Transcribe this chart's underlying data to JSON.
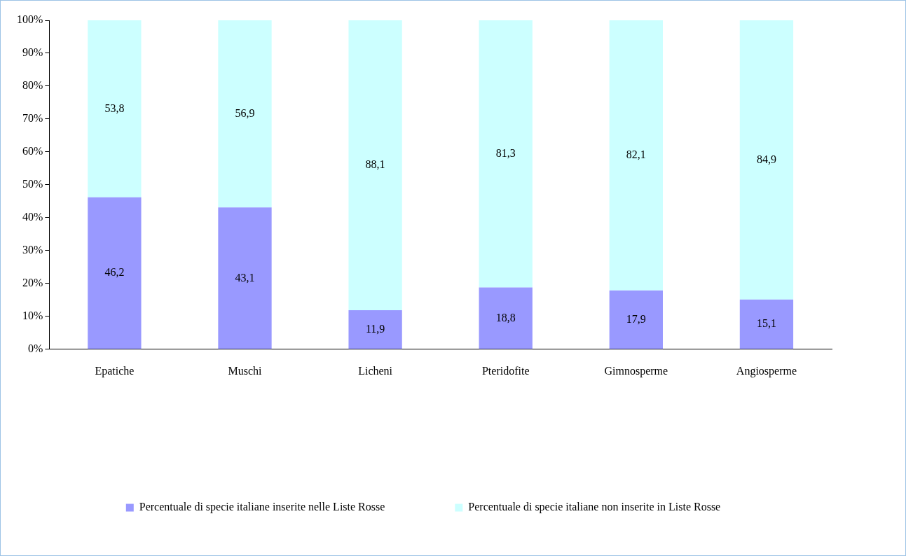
{
  "chart_data": {
    "type": "bar",
    "stacked": true,
    "categories": [
      "Epatiche",
      "Muschi",
      "Licheni",
      "Pteridofite",
      "Gimnosperme",
      "Angiosperme"
    ],
    "series": [
      {
        "name": "Percentuale di specie italiane inserite nelle Liste Rosse",
        "color": "#9999ff",
        "values": [
          46.2,
          43.1,
          11.9,
          18.8,
          17.9,
          15.1
        ],
        "value_labels": [
          "46,2",
          "43,1",
          "11,9",
          "18,8",
          "17,9",
          "15,1"
        ]
      },
      {
        "name": "Percentuale di specie italiane non inserite in Liste Rosse",
        "color": "#ccffff",
        "values": [
          53.8,
          56.9,
          88.1,
          81.3,
          82.1,
          84.9
        ],
        "value_labels": [
          "53,8",
          "56,9",
          "88,1",
          "81,3",
          "82,1",
          "84,9"
        ]
      }
    ],
    "ylim": [
      0,
      100
    ],
    "yticks": [
      {
        "value": 0,
        "label": "0%"
      },
      {
        "value": 10,
        "label": "10%"
      },
      {
        "value": 20,
        "label": "20%"
      },
      {
        "value": 30,
        "label": "30%"
      },
      {
        "value": 40,
        "label": "40%"
      },
      {
        "value": 50,
        "label": "50%"
      },
      {
        "value": 60,
        "label": "60%"
      },
      {
        "value": 70,
        "label": "70%"
      },
      {
        "value": 80,
        "label": "80%"
      },
      {
        "value": 90,
        "label": "90%"
      },
      {
        "value": 100,
        "label": "100%"
      }
    ],
    "grid": false,
    "legend": "bottom"
  }
}
